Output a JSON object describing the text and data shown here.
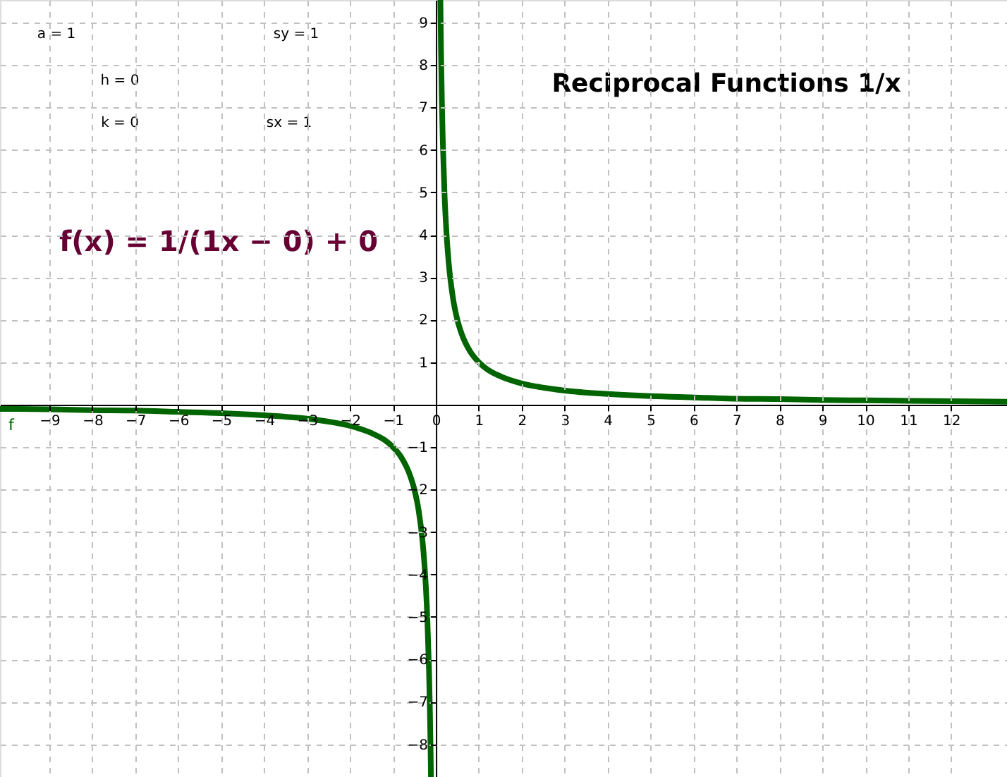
{
  "chart_data": {
    "type": "line",
    "title": "Reciprocal Functions 1/x",
    "annotations": [
      "a = 1",
      "h = 0",
      "k = 0",
      "sy = 1",
      "sx = 1",
      "f(x) = 1/(1x − 0) + 0"
    ],
    "series": [
      {
        "name": "f",
        "color": "#006400",
        "x": [
          -10.15,
          -9,
          -8,
          -7,
          -6,
          -5,
          -4,
          -3,
          -2.5,
          -2,
          -1.5,
          -1.2,
          -1,
          -0.8,
          -0.6,
          -0.5,
          -0.4,
          -0.3,
          -0.25,
          -0.2,
          -0.16,
          -0.14,
          -0.125,
          -0.114
        ],
        "values": [
          -0.1,
          -0.11,
          -0.13,
          -0.14,
          -0.17,
          -0.2,
          -0.25,
          -0.33,
          -0.4,
          -0.5,
          -0.67,
          -0.83,
          -1,
          -1.25,
          -1.67,
          -2,
          -2.5,
          -3.33,
          -4,
          -5,
          -6.25,
          -7.14,
          -8,
          -8.77
        ]
      },
      {
        "color": "#006400",
        "x": [
          0.105,
          0.12,
          0.14,
          0.16,
          0.2,
          0.25,
          0.3,
          0.4,
          0.5,
          0.6,
          0.8,
          1,
          1.2,
          1.5,
          2,
          2.5,
          3,
          4,
          5,
          6,
          7,
          8,
          9,
          10,
          11,
          12,
          13.3
        ],
        "values": [
          9.53,
          8.33,
          7.14,
          6.25,
          5,
          4,
          3.33,
          2.5,
          2,
          1.67,
          1.25,
          1,
          0.83,
          0.67,
          0.5,
          0.4,
          0.33,
          0.25,
          0.2,
          0.17,
          0.14,
          0.13,
          0.11,
          0.1,
          0.09,
          0.08,
          0.07
        ]
      }
    ],
    "xlim": [
      -10.15,
      13.3
    ],
    "ylim": [
      -8.77,
      9.53
    ],
    "xticks": [
      -9,
      -8,
      -7,
      -6,
      -5,
      -4,
      -3,
      -2,
      -1,
      0,
      1,
      2,
      3,
      4,
      5,
      6,
      7,
      8,
      9,
      10,
      11,
      12
    ],
    "yticks": [
      -8,
      -7,
      -6,
      -5,
      -4,
      -3,
      -2,
      -1,
      1,
      2,
      3,
      4,
      5,
      6,
      7,
      8,
      9
    ],
    "grid": true,
    "marker": "none",
    "line_style": "solid"
  }
}
